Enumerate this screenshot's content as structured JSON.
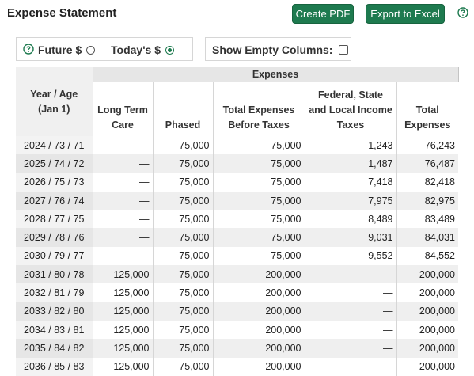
{
  "header": {
    "title": "Expense Statement",
    "create_pdf_label": "Create PDF",
    "export_excel_label": "Export to Excel",
    "help_icon": "help-circle-icon"
  },
  "options": {
    "future_label": "Future $",
    "today_label": "Today's $",
    "selected": "today",
    "show_empty_label": "Show Empty Columns:",
    "show_empty_checked": false
  },
  "table": {
    "group_label": "Expenses",
    "columns": [
      [
        "Year / Age",
        "(Jan 1)"
      ],
      [
        "Long Term",
        "Care"
      ],
      [
        "Phased"
      ],
      [
        "Total Expenses",
        "Before Taxes"
      ],
      [
        "Federal, State",
        "and Local Income",
        "Taxes"
      ],
      [
        "Total",
        "Expenses"
      ]
    ],
    "rows": [
      [
        "2024 / 73 / 71",
        "—",
        "75,000",
        "75,000",
        "1,243",
        "76,243"
      ],
      [
        "2025 / 74 / 72",
        "—",
        "75,000",
        "75,000",
        "1,487",
        "76,487"
      ],
      [
        "2026 / 75 / 73",
        "—",
        "75,000",
        "75,000",
        "7,418",
        "82,418"
      ],
      [
        "2027 / 76 / 74",
        "—",
        "75,000",
        "75,000",
        "7,975",
        "82,975"
      ],
      [
        "2028 / 77 / 75",
        "—",
        "75,000",
        "75,000",
        "8,489",
        "83,489"
      ],
      [
        "2029 / 78 / 76",
        "—",
        "75,000",
        "75,000",
        "9,031",
        "84,031"
      ],
      [
        "2030 / 79 / 77",
        "—",
        "75,000",
        "75,000",
        "9,552",
        "84,552"
      ],
      [
        "2031 / 80 / 78",
        "125,000",
        "75,000",
        "200,000",
        "—",
        "200,000"
      ],
      [
        "2032 / 81 / 79",
        "125,000",
        "75,000",
        "200,000",
        "—",
        "200,000"
      ],
      [
        "2033 / 82 / 80",
        "125,000",
        "75,000",
        "200,000",
        "—",
        "200,000"
      ],
      [
        "2034 / 83 / 81",
        "125,000",
        "75,000",
        "200,000",
        "—",
        "200,000"
      ],
      [
        "2035 / 84 / 82",
        "125,000",
        "75,000",
        "200,000",
        "—",
        "200,000"
      ],
      [
        "2036 / 85 / 83",
        "125,000",
        "75,000",
        "200,000",
        "—",
        "200,000"
      ]
    ]
  },
  "colors": {
    "accent": "#1e7a4f",
    "header_band": "#e6e6e6",
    "stripe": "#efefef"
  }
}
